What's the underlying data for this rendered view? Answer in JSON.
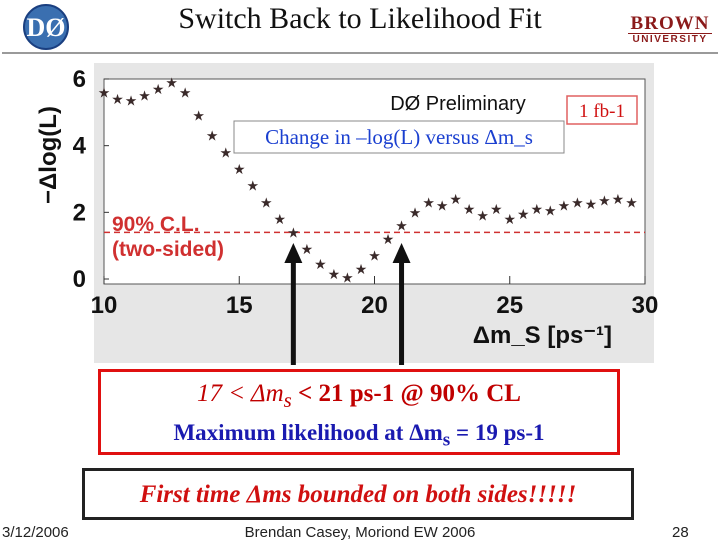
{
  "slide": {
    "title": "Switch Back to Likelihood Fit",
    "logo_left": "DØ",
    "logo_right_1": "BROWN",
    "logo_right_2": "UNIVERSITY"
  },
  "chart_data": {
    "type": "line",
    "title": "Change in –log(L) versus Δm_s",
    "annotations": [
      "DØ Preliminary",
      "1 fb-1",
      "90% C.L.",
      "(two-sided)"
    ],
    "xlabel": "Δm_S [ps⁻¹]",
    "ylabel": "−Δlog(L)",
    "xlim": [
      10,
      30
    ],
    "ylim": [
      0,
      6
    ],
    "x_ticks": [
      "10",
      "15",
      "20",
      "25",
      "30"
    ],
    "y_ticks": [
      "0",
      "2",
      "4",
      "6"
    ],
    "cl_line_y": 1.4,
    "arrows_at_x": [
      17,
      21
    ],
    "series": [
      {
        "x": [
          10.0,
          10.5,
          11.0,
          11.5,
          12.0,
          12.5,
          13.0,
          13.5,
          14.0,
          14.5,
          15.0,
          15.5,
          16.0,
          16.5,
          17.0,
          17.5,
          18.0,
          18.5,
          19.0,
          19.5,
          20.0,
          20.5,
          21.0,
          21.5,
          22.0,
          22.5,
          23.0,
          23.5,
          24.0,
          24.5,
          25.0,
          25.5,
          26.0,
          26.5,
          27.0,
          27.5,
          28.0,
          28.5,
          29.0,
          29.5
        ],
        "values": [
          5.6,
          5.4,
          5.35,
          5.5,
          5.7,
          5.9,
          5.6,
          4.9,
          4.3,
          3.8,
          3.3,
          2.8,
          2.3,
          1.8,
          1.4,
          0.9,
          0.45,
          0.15,
          0.05,
          0.3,
          0.7,
          1.2,
          1.6,
          2.0,
          2.3,
          2.2,
          2.4,
          2.1,
          1.9,
          2.1,
          1.8,
          1.95,
          2.1,
          2.05,
          2.2,
          2.3,
          2.25,
          2.35,
          2.4,
          2.3
        ]
      }
    ]
  },
  "callout": {
    "cl_prefix": "17 < Δm",
    "cl_sub": "s",
    "cl_suffix": " <  21 ps-1 @ 90% CL",
    "ml_prefix": "Maximum likelihood at Δm",
    "ml_sub": "s",
    "ml_suffix": " = 19 ps-1",
    "bounded": "First time Δms bounded on both sides!!!!!"
  },
  "footer": {
    "date": "3/12/2006",
    "author": "Brendan Casey, Moriond EW 2006",
    "page": "28"
  }
}
